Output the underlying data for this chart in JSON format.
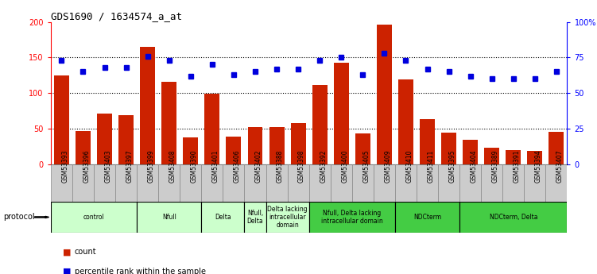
{
  "title": "GDS1690 / 1634574_a_at",
  "samples": [
    "GSM53393",
    "GSM53396",
    "GSM53403",
    "GSM53397",
    "GSM53399",
    "GSM53408",
    "GSM53390",
    "GSM53401",
    "GSM53406",
    "GSM53402",
    "GSM53388",
    "GSM53398",
    "GSM53392",
    "GSM53400",
    "GSM53405",
    "GSM53409",
    "GSM53410",
    "GSM53411",
    "GSM53395",
    "GSM53404",
    "GSM53389",
    "GSM53391",
    "GSM53394",
    "GSM53407"
  ],
  "counts": [
    125,
    47,
    71,
    69,
    165,
    116,
    38,
    99,
    39,
    52,
    52,
    58,
    111,
    143,
    44,
    196,
    119,
    63,
    45,
    35,
    23,
    20,
    19,
    46
  ],
  "percentiles": [
    73,
    65,
    68,
    68,
    76,
    73,
    62,
    70,
    63,
    65,
    67,
    67,
    73,
    75,
    63,
    78,
    73,
    67,
    65,
    62,
    60,
    60,
    60,
    65
  ],
  "ylim_left": [
    0,
    200
  ],
  "ylim_right": [
    0,
    100
  ],
  "yticks_left": [
    0,
    50,
    100,
    150,
    200
  ],
  "yticks_right": [
    0,
    25,
    50,
    75,
    100
  ],
  "ytick_labels_right": [
    "0",
    "25",
    "50",
    "75",
    "100%"
  ],
  "bar_color": "#cc2200",
  "dot_color": "#0000dd",
  "plot_bg": "#ffffff",
  "light_green": "#ccffcc",
  "dark_green": "#44cc44",
  "sample_bg": "#cccccc",
  "protocol_groups": [
    {
      "label": "control",
      "start": 0,
      "end": 3,
      "color": "light"
    },
    {
      "label": "Nfull",
      "start": 4,
      "end": 6,
      "color": "light"
    },
    {
      "label": "Delta",
      "start": 7,
      "end": 8,
      "color": "light"
    },
    {
      "label": "Nfull,\nDelta",
      "start": 9,
      "end": 9,
      "color": "light"
    },
    {
      "label": "Delta lacking\nintracellular\ndomain",
      "start": 10,
      "end": 11,
      "color": "light"
    },
    {
      "label": "Nfull, Delta lacking\nintracellular domain",
      "start": 12,
      "end": 15,
      "color": "dark"
    },
    {
      "label": "NDCterm",
      "start": 16,
      "end": 18,
      "color": "dark"
    },
    {
      "label": "NDCterm, Delta",
      "start": 19,
      "end": 23,
      "color": "dark"
    }
  ]
}
